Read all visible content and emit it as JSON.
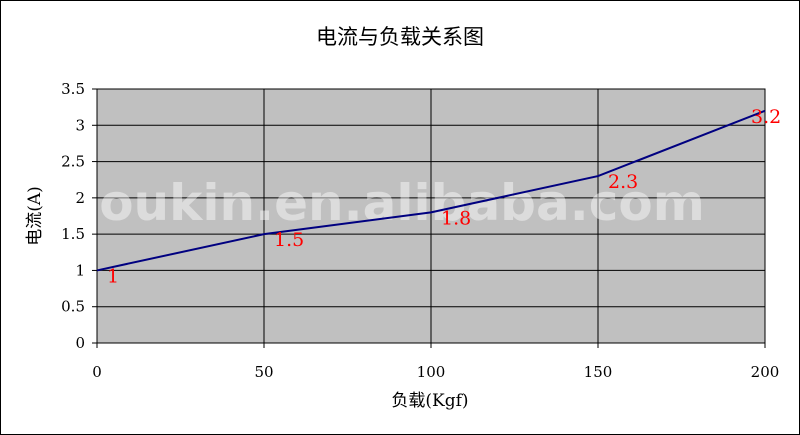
{
  "watermark": "oukin.en.alibaba.com",
  "colors": {
    "plot_background": "#c0c0c0",
    "gridline": "#000000",
    "line": "#000080",
    "data_label": "#ff0000"
  },
  "chart_data": {
    "type": "line",
    "title": "电流与负载关系图",
    "xlabel": "负载(Kgf)",
    "ylabel": "电流(A)",
    "x": [
      0,
      50,
      100,
      150,
      200
    ],
    "series": [
      {
        "values": [
          1,
          1.5,
          1.8,
          2.3,
          3.2
        ]
      }
    ],
    "data_labels": [
      "1",
      "1.5",
      "1.8",
      "2.3",
      "3.2"
    ],
    "xlim": [
      0,
      200
    ],
    "ylim": [
      0,
      3.5
    ],
    "x_ticks": [
      0,
      50,
      100,
      150,
      200
    ],
    "x_tick_labels": [
      "0",
      "50",
      "100",
      "150",
      "200"
    ],
    "y_ticks": [
      0,
      0.5,
      1,
      1.5,
      2,
      2.5,
      3,
      3.5
    ],
    "y_tick_labels": [
      "0",
      "0.5",
      "1",
      "1.5",
      "2",
      "2.5",
      "3",
      "3.5"
    ],
    "grid": true,
    "legend": "none"
  }
}
